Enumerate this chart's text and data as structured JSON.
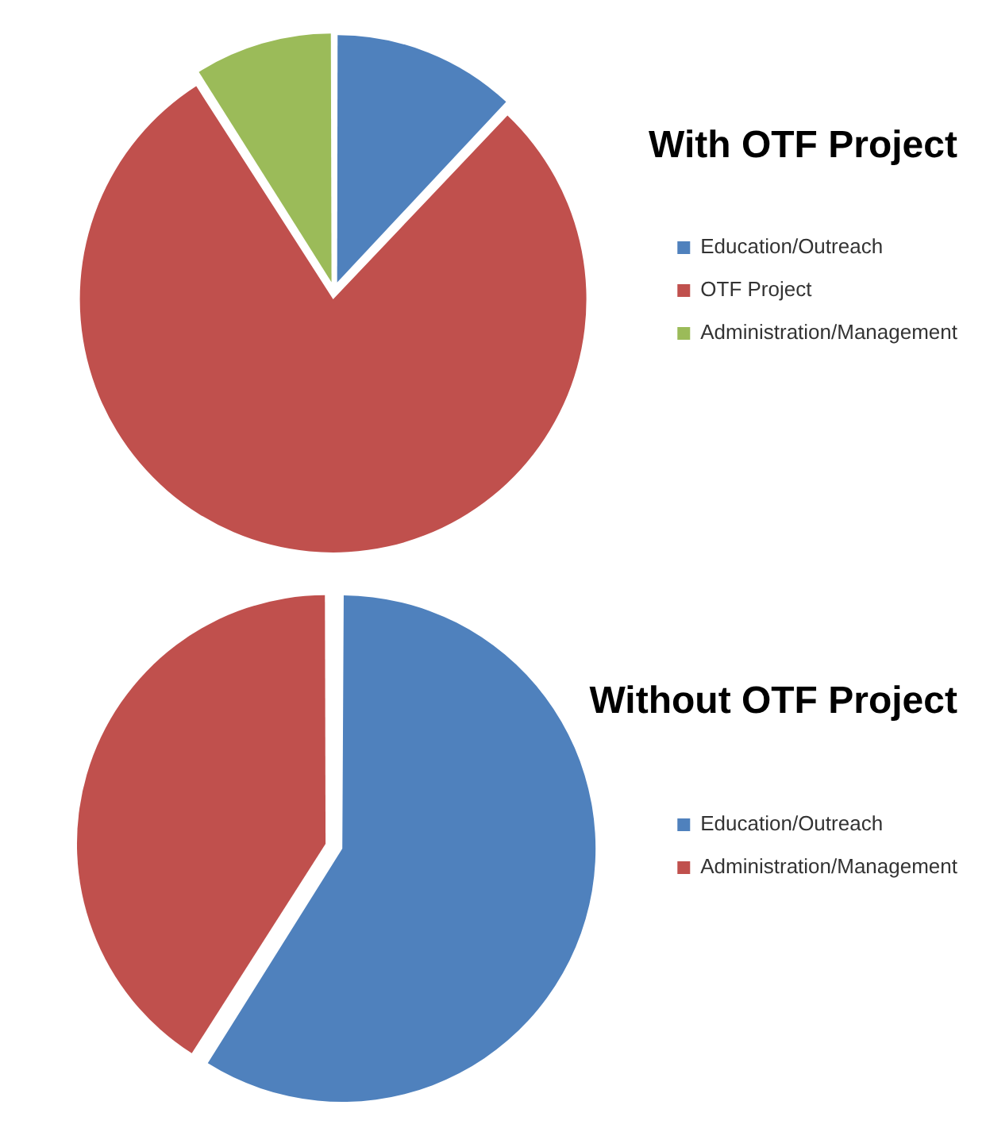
{
  "chart_data": [
    {
      "type": "pie",
      "title": "With OTF Project",
      "categories": [
        "Education/Outreach",
        "OTF Project",
        "Administration/Management"
      ],
      "values": [
        12,
        79,
        9
      ],
      "colors": [
        "#4f81bd",
        "#c0504d",
        "#9bbb59"
      ],
      "legend": "right"
    },
    {
      "type": "pie",
      "title": "Without OTF Project",
      "categories": [
        "Education/Outreach",
        "Administration/Management"
      ],
      "values": [
        59,
        41
      ],
      "colors": [
        "#4f81bd",
        "#c0504d"
      ],
      "legend": "right"
    }
  ]
}
